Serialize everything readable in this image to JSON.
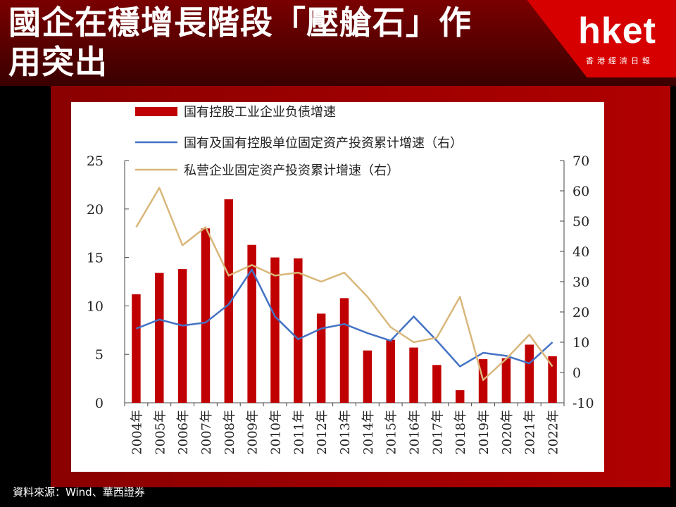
{
  "header": {
    "title": "國企在穩增長階段「壓艙石」作用突出",
    "logo": "hket",
    "logo_sub": "香港經濟日報"
  },
  "source": "資料來源：Wind、華西證券",
  "colors": {
    "bar": "#c00000",
    "state_line": "#4472c4",
    "private_line": "#d9b77a"
  },
  "chart_data": {
    "type": "bar",
    "categories": [
      "2004年",
      "2005年",
      "2006年",
      "2007年",
      "2008年",
      "2009年",
      "2010年",
      "2011年",
      "2012年",
      "2013年",
      "2014年",
      "2015年",
      "2016年",
      "2017年",
      "2018年",
      "2019年",
      "2020年",
      "2021年",
      "2022年"
    ],
    "left_axis": {
      "min": 0,
      "max": 25,
      "ticks": [
        0,
        5,
        10,
        15,
        20,
        25
      ]
    },
    "right_axis": {
      "min": -10,
      "max": 70,
      "ticks": [
        -10,
        0,
        10,
        20,
        30,
        40,
        50,
        60,
        70
      ]
    },
    "series": [
      {
        "name": "国有控股工业企业负债增速",
        "type": "bar",
        "axis": "left",
        "values": [
          11.2,
          13.4,
          13.8,
          18.0,
          21.0,
          16.3,
          15.0,
          14.9,
          9.2,
          10.8,
          5.4,
          6.5,
          5.7,
          3.9,
          1.3,
          4.5,
          4.6,
          6.0,
          4.8
        ]
      },
      {
        "name": "国有及国有控股单位固定资产投资累计增速（右）",
        "type": "line",
        "axis": "right",
        "values": [
          14.5,
          17.5,
          15.5,
          16.5,
          22.5,
          34.0,
          18.5,
          11.0,
          14.5,
          16.0,
          13.0,
          10.5,
          18.5,
          10.5,
          2.0,
          6.5,
          5.5,
          3.0,
          10.0
        ]
      },
      {
        "name": "私营企业固定资产投资累计增速（右）",
        "type": "line",
        "axis": "right",
        "values": [
          48.0,
          61.0,
          42.0,
          48.0,
          32.0,
          35.5,
          32.0,
          33.0,
          30.0,
          33.0,
          25.0,
          15.0,
          10.0,
          11.5,
          25.0,
          -2.5,
          4.5,
          12.5,
          2.0
        ]
      }
    ]
  }
}
